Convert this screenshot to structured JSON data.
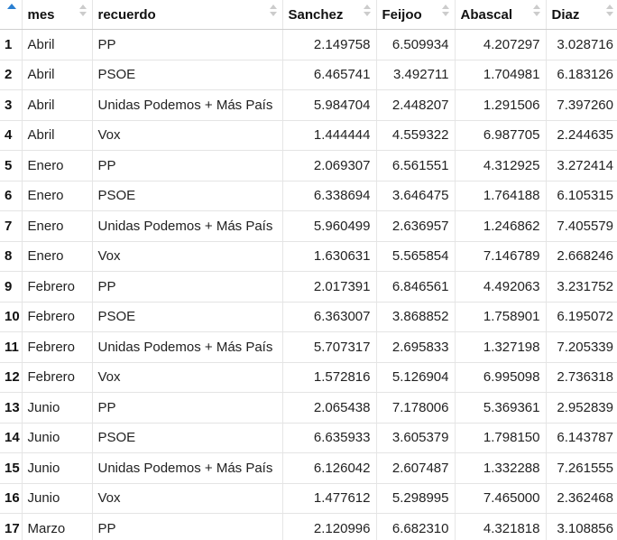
{
  "columns": [
    "mes",
    "recuerdo",
    "Sanchez",
    "Feijoo",
    "Abascal",
    "Diaz"
  ],
  "rows": [
    {
      "index": "1",
      "mes": "Abril",
      "recuerdo": "PP",
      "Sanchez": "2.149758",
      "Feijoo": "6.509934",
      "Abascal": "4.207297",
      "Diaz": "3.028716"
    },
    {
      "index": "2",
      "mes": "Abril",
      "recuerdo": "PSOE",
      "Sanchez": "6.465741",
      "Feijoo": "3.492711",
      "Abascal": "1.704981",
      "Diaz": "6.183126"
    },
    {
      "index": "3",
      "mes": "Abril",
      "recuerdo": "Unidas Podemos + Más País",
      "Sanchez": "5.984704",
      "Feijoo": "2.448207",
      "Abascal": "1.291506",
      "Diaz": "7.397260"
    },
    {
      "index": "4",
      "mes": "Abril",
      "recuerdo": "Vox",
      "Sanchez": "1.444444",
      "Feijoo": "4.559322",
      "Abascal": "6.987705",
      "Diaz": "2.244635"
    },
    {
      "index": "5",
      "mes": "Enero",
      "recuerdo": "PP",
      "Sanchez": "2.069307",
      "Feijoo": "6.561551",
      "Abascal": "4.312925",
      "Diaz": "3.272414"
    },
    {
      "index": "6",
      "mes": "Enero",
      "recuerdo": "PSOE",
      "Sanchez": "6.338694",
      "Feijoo": "3.646475",
      "Abascal": "1.764188",
      "Diaz": "6.105315"
    },
    {
      "index": "7",
      "mes": "Enero",
      "recuerdo": "Unidas Podemos + Más País",
      "Sanchez": "5.960499",
      "Feijoo": "2.636957",
      "Abascal": "1.246862",
      "Diaz": "7.405579"
    },
    {
      "index": "8",
      "mes": "Enero",
      "recuerdo": "Vox",
      "Sanchez": "1.630631",
      "Feijoo": "5.565854",
      "Abascal": "7.146789",
      "Diaz": "2.668246"
    },
    {
      "index": "9",
      "mes": "Febrero",
      "recuerdo": "PP",
      "Sanchez": "2.017391",
      "Feijoo": "6.846561",
      "Abascal": "4.492063",
      "Diaz": "3.231752"
    },
    {
      "index": "10",
      "mes": "Febrero",
      "recuerdo": "PSOE",
      "Sanchez": "6.363007",
      "Feijoo": "3.868852",
      "Abascal": "1.758901",
      "Diaz": "6.195072"
    },
    {
      "index": "11",
      "mes": "Febrero",
      "recuerdo": "Unidas Podemos + Más País",
      "Sanchez": "5.707317",
      "Feijoo": "2.695833",
      "Abascal": "1.327198",
      "Diaz": "7.205339"
    },
    {
      "index": "12",
      "mes": "Febrero",
      "recuerdo": "Vox",
      "Sanchez": "1.572816",
      "Feijoo": "5.126904",
      "Abascal": "6.995098",
      "Diaz": "2.736318"
    },
    {
      "index": "13",
      "mes": "Junio",
      "recuerdo": "PP",
      "Sanchez": "2.065438",
      "Feijoo": "7.178006",
      "Abascal": "5.369361",
      "Diaz": "2.952839"
    },
    {
      "index": "14",
      "mes": "Junio",
      "recuerdo": "PSOE",
      "Sanchez": "6.635933",
      "Feijoo": "3.605379",
      "Abascal": "1.798150",
      "Diaz": "6.143787"
    },
    {
      "index": "15",
      "mes": "Junio",
      "recuerdo": "Unidas Podemos + Más País",
      "Sanchez": "6.126042",
      "Feijoo": "2.607487",
      "Abascal": "1.332288",
      "Diaz": "7.261555"
    },
    {
      "index": "16",
      "mes": "Junio",
      "recuerdo": "Vox",
      "Sanchez": "1.477612",
      "Feijoo": "5.298995",
      "Abascal": "7.465000",
      "Diaz": "2.362468"
    },
    {
      "index": "17",
      "mes": "Marzo",
      "recuerdo": "PP",
      "Sanchez": "2.120996",
      "Feijoo": "6.682310",
      "Abascal": "4.321818",
      "Diaz": "3.108856"
    }
  ],
  "colors": {
    "sort_active": "#2a7fd1",
    "sort_inactive": "#cccccc",
    "row_border": "#e4e4e4"
  },
  "icons": {
    "index_sort": "sort-ascending-icon",
    "column_sort": "sort-both-icon"
  }
}
